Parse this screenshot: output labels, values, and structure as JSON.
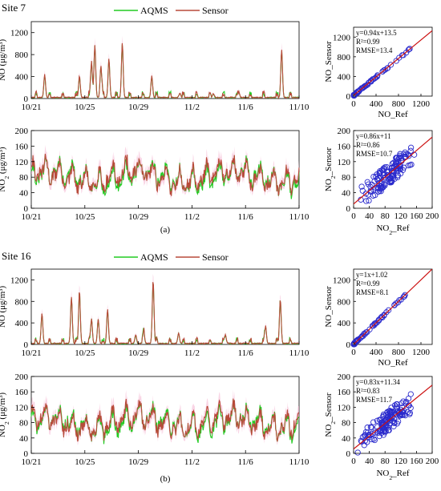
{
  "colors": {
    "aqms": "#22cc22",
    "sensor": "#b84a3a",
    "scatter": "#2a2acc",
    "fit": "#cc1111",
    "band": "#f4b3cf"
  },
  "legend": {
    "aqms": "AQMS",
    "sensor": "Sensor"
  },
  "sites": [
    {
      "title": "Site 7",
      "caption": "(a)",
      "ts_xticks": [
        "10/21",
        "10/25",
        "10/29",
        "11/2",
        "11/6",
        "11/10"
      ],
      "no_ylabel": "NO (μg/m³)",
      "no2_ylabel_main": "NO",
      "no2_ylabel_sub": "2",
      "no2_ylabel_unit": " (μg/m³)",
      "no_yticks": [
        "0",
        "400",
        "800",
        "1200"
      ],
      "no2_yticks": [
        "0",
        "40",
        "80",
        "120",
        "160",
        "200"
      ],
      "no_scatter": {
        "xlabel": "NO_Ref",
        "ylabel": "NO_Sensor",
        "xticks": [
          "0",
          "400",
          "800",
          "1200"
        ],
        "yticks": [
          "0",
          "400",
          "800",
          "1200"
        ],
        "stats": [
          "y=0.94x+13.5",
          "R²=0.99",
          "RMSE=13.4"
        ]
      },
      "no2_scatter": {
        "xlabel_main": "NO",
        "xlabel_sub": "2",
        "xlabel_tail": "_Ref",
        "ylabel_main": "NO",
        "ylabel_sub": "2",
        "ylabel_tail": "_Sensor",
        "xticks": [
          "0",
          "40",
          "80",
          "120",
          "160",
          "200"
        ],
        "yticks": [
          "0",
          "40",
          "80",
          "120",
          "160",
          "200"
        ],
        "stats": [
          "y=0.86x+11",
          "R²=0.86",
          "RMSE=10.7"
        ]
      }
    },
    {
      "title": "Site 16",
      "caption": "(b)",
      "ts_xticks": [
        "10/21",
        "10/25",
        "10/29",
        "11/2",
        "11/6",
        "11/10"
      ],
      "no_ylabel": "NO (μg/m³)",
      "no2_ylabel_main": "NO",
      "no2_ylabel_sub": "2",
      "no2_ylabel_unit": " (μg/m³)",
      "no_yticks": [
        "0",
        "400",
        "800",
        "1200"
      ],
      "no2_yticks": [
        "0",
        "40",
        "80",
        "120",
        "160",
        "200"
      ],
      "no_scatter": {
        "xlabel": "NO_Ref",
        "ylabel": "NO_Sensor",
        "xticks": [
          "0",
          "400",
          "800",
          "1200"
        ],
        "yticks": [
          "0",
          "400",
          "800",
          "1200"
        ],
        "stats": [
          "y=1x+1.02",
          "R²=0.99",
          "RMSE=8.1"
        ]
      },
      "no2_scatter": {
        "xlabel_main": "NO",
        "xlabel_sub": "2",
        "xlabel_tail": "_Ref",
        "ylabel_main": "NO",
        "ylabel_sub": "2",
        "ylabel_tail": "_Sensor",
        "xticks": [
          "0",
          "40",
          "80",
          "120",
          "160",
          "200"
        ],
        "yticks": [
          "0",
          "40",
          "80",
          "120",
          "160",
          "200"
        ],
        "stats": [
          "y=0.83x+11.34",
          "R²=0.83",
          "RMSE=11.7"
        ]
      }
    }
  ],
  "chart_data": [
    {
      "type": "line",
      "site": "Site 7",
      "pollutant": "NO",
      "x_range": [
        "10/21",
        "11/10"
      ],
      "ylim": [
        0,
        1400
      ],
      "series": [
        {
          "name": "AQMS",
          "peaks": [
            [
              1.0,
              400
            ],
            [
              3.6,
              370
            ],
            [
              4.5,
              640
            ],
            [
              4.75,
              940
            ],
            [
              5.2,
              560
            ],
            [
              5.8,
              690
            ],
            [
              6.8,
              980
            ],
            [
              9.0,
              380
            ],
            [
              11.1,
              80
            ],
            [
              13.6,
              60
            ],
            [
              15.5,
              100
            ],
            [
              18.7,
              850
            ]
          ]
        },
        {
          "name": "Sensor",
          "peaks": [
            [
              1.0,
              420
            ],
            [
              3.6,
              390
            ],
            [
              4.5,
              660
            ],
            [
              4.75,
              960
            ],
            [
              5.2,
              580
            ],
            [
              5.8,
              710
            ],
            [
              6.8,
              1000
            ],
            [
              9.0,
              390
            ],
            [
              11.1,
              85
            ],
            [
              13.6,
              65
            ],
            [
              15.5,
              110
            ],
            [
              18.7,
              870
            ]
          ]
        }
      ]
    },
    {
      "type": "line",
      "site": "Site 7",
      "pollutant": "NO2",
      "x_range": [
        "10/21",
        "11/10"
      ],
      "ylim": [
        0,
        200
      ],
      "series": [
        {
          "name": "AQMS",
          "range": [
            15,
            170
          ],
          "mean": 80
        },
        {
          "name": "Sensor",
          "range": [
            10,
            190
          ],
          "mean": 82
        }
      ]
    },
    {
      "type": "scatter",
      "site": "Site 7",
      "pollutant": "NO",
      "xlim": [
        0,
        1400
      ],
      "ylim": [
        0,
        1400
      ],
      "fit": {
        "slope": 0.94,
        "intercept": 13.5,
        "r2": 0.99,
        "rmse": 13.4
      }
    },
    {
      "type": "scatter",
      "site": "Site 7",
      "pollutant": "NO2",
      "xlim": [
        0,
        200
      ],
      "ylim": [
        0,
        200
      ],
      "fit": {
        "slope": 0.86,
        "intercept": 11,
        "r2": 0.86,
        "rmse": 10.7
      }
    },
    {
      "type": "line",
      "site": "Site 16",
      "pollutant": "NO",
      "x_range": [
        "10/21",
        "11/10"
      ],
      "ylim": [
        0,
        1400
      ],
      "series": [
        {
          "name": "AQMS",
          "peaks": [
            [
              0.8,
              550
            ],
            [
              3.0,
              850
            ],
            [
              3.6,
              960
            ],
            [
              4.5,
              460
            ],
            [
              5.0,
              440
            ],
            [
              5.7,
              620
            ],
            [
              7.8,
              150
            ],
            [
              8.4,
              200
            ],
            [
              9.1,
              1160
            ],
            [
              11.0,
              180
            ],
            [
              14.5,
              150
            ],
            [
              17.5,
              320
            ],
            [
              18.6,
              820
            ]
          ]
        },
        {
          "name": "Sensor",
          "peaks": [
            [
              0.8,
              560
            ],
            [
              3.0,
              870
            ],
            [
              3.6,
              980
            ],
            [
              4.5,
              470
            ],
            [
              5.0,
              450
            ],
            [
              5.7,
              640
            ],
            [
              7.8,
              160
            ],
            [
              8.4,
              210
            ],
            [
              9.1,
              1180
            ],
            [
              11.0,
              190
            ],
            [
              14.5,
              160
            ],
            [
              17.5,
              330
            ],
            [
              18.6,
              830
            ]
          ]
        }
      ]
    },
    {
      "type": "line",
      "site": "Site 16",
      "pollutant": "NO2",
      "x_range": [
        "10/21",
        "11/10"
      ],
      "ylim": [
        0,
        200
      ],
      "series": [
        {
          "name": "AQMS",
          "range": [
            20,
            160
          ],
          "mean": 80
        },
        {
          "name": "Sensor",
          "range": [
            25,
            165
          ],
          "mean": 82
        }
      ]
    },
    {
      "type": "scatter",
      "site": "Site 16",
      "pollutant": "NO",
      "xlim": [
        0,
        1400
      ],
      "ylim": [
        0,
        1400
      ],
      "fit": {
        "slope": 1,
        "intercept": 1.02,
        "r2": 0.99,
        "rmse": 8.1
      }
    },
    {
      "type": "scatter",
      "site": "Site 16",
      "pollutant": "NO2",
      "xlim": [
        0,
        200
      ],
      "ylim": [
        0,
        200
      ],
      "fit": {
        "slope": 0.83,
        "intercept": 11.34,
        "r2": 0.83,
        "rmse": 11.7
      }
    }
  ]
}
